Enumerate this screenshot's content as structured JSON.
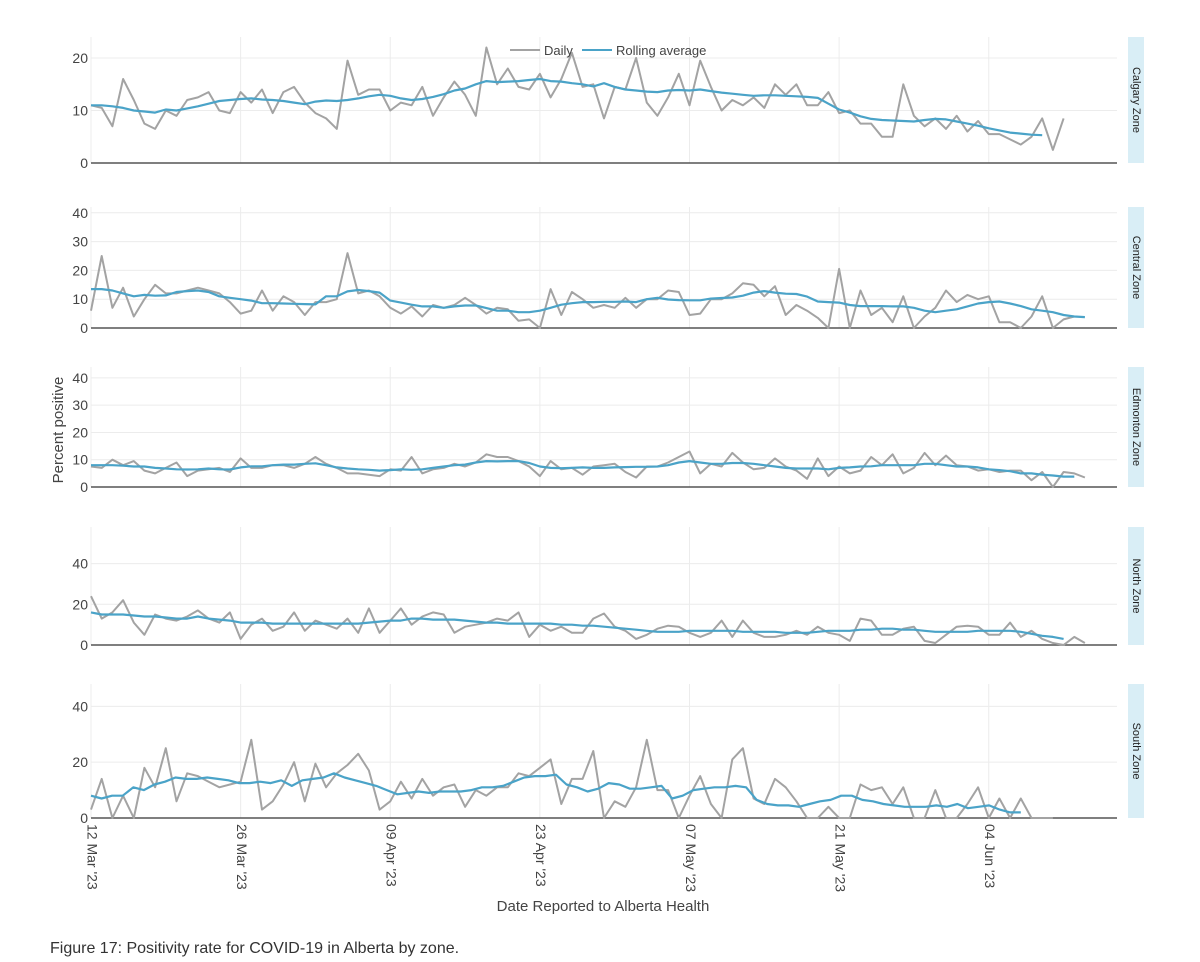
{
  "caption": "Figure 17: Positivity rate for COVID-19 in Alberta by zone.",
  "chart_data": {
    "type": "line",
    "xlabel": "Date Reported to Alberta Health",
    "ylabel": "Percent positive",
    "x_start": "2023-03-12",
    "x_end": "2023-06-16",
    "x_ticks": [
      {
        "day": 0,
        "label": "12 Mar '23"
      },
      {
        "day": 14,
        "label": "26 Mar '23"
      },
      {
        "day": 28,
        "label": "09 Apr '23"
      },
      {
        "day": 42,
        "label": "23 Apr '23"
      },
      {
        "day": 56,
        "label": "07 May '23"
      },
      {
        "day": 70,
        "label": "21 May '23"
      },
      {
        "day": 84,
        "label": "04 Jun '23"
      }
    ],
    "legend": [
      {
        "name": "Daily",
        "color": "#a3a3a3"
      },
      {
        "name": "Rolling average",
        "color": "#4aa3c8"
      }
    ],
    "panels": [
      {
        "zone": "Calgary Zone",
        "ylim": [
          0,
          24
        ],
        "yticks": [
          0,
          10,
          20
        ],
        "daily": [
          11,
          10.5,
          7,
          16,
          12,
          7.5,
          6.5,
          10,
          9,
          12,
          12.5,
          13.5,
          10,
          9.5,
          13.5,
          11.5,
          14,
          9.5,
          13.5,
          14.5,
          11.5,
          9.5,
          8.5,
          6.5,
          19.5,
          13,
          14,
          14,
          10,
          11.5,
          11,
          14.5,
          9,
          12.5,
          15.5,
          13,
          9,
          22,
          15,
          18,
          14.5,
          14,
          17,
          12.5,
          16,
          21,
          14.5,
          15,
          8.5,
          14.5,
          14,
          20,
          11.5,
          9,
          12.5,
          17,
          11,
          19.5,
          14.5,
          10,
          12,
          11,
          12.5,
          10.5,
          15,
          13,
          15,
          11,
          11,
          13.5,
          9.5,
          10,
          7.5,
          7.5,
          5,
          5,
          15,
          9,
          7,
          8.5,
          6.5,
          9,
          6,
          8,
          5.5,
          5.5,
          4.5,
          3.5,
          5,
          8.5,
          2.5,
          8.5
        ],
        "rolling": [
          11,
          11,
          10.8,
          10.5,
          10,
          9.8,
          9.6,
          10.2,
          10,
          10.4,
          10.8,
          11.3,
          11.8,
          12,
          12.2,
          12.3,
          12.1,
          12,
          11.8,
          11.5,
          11.2,
          11.7,
          11.9,
          11.8,
          12,
          12.3,
          12.7,
          13,
          12.8,
          12.3,
          12,
          12.2,
          12.6,
          13.1,
          13.8,
          14.2,
          15,
          15.6,
          15.4,
          15.5,
          15.6,
          15.8,
          16,
          15.6,
          15.5,
          15.2,
          15,
          14.6,
          15.2,
          14.5,
          14,
          13.8,
          13.6,
          13.5,
          13.8,
          13.9,
          13.8,
          14,
          13.7,
          13.4,
          13.2,
          13,
          12.8,
          12.9,
          12.9,
          12.8,
          12.7,
          12.6,
          12.4,
          11.3,
          10.2,
          9.6,
          8.9,
          8.4,
          8.2,
          8.1,
          8,
          7.9,
          8.2,
          8.4,
          8.3,
          7.9,
          7.5,
          7.1,
          6.6,
          6.2,
          5.8,
          5.6,
          5.4,
          5.3
        ],
        "rolling_start": 0
      },
      {
        "zone": "Central Zone",
        "ylim": [
          0,
          42
        ],
        "yticks": [
          0,
          10,
          20,
          30,
          40
        ],
        "daily": [
          6,
          25,
          7,
          14,
          4,
          10,
          15,
          12,
          12,
          13,
          14,
          13,
          12,
          9,
          5,
          6,
          13,
          6,
          11,
          9,
          4.5,
          9,
          9,
          10,
          26,
          12,
          13,
          11,
          7,
          5,
          7.5,
          4,
          8,
          7,
          8,
          10.5,
          8,
          5,
          7,
          6.5,
          2.5,
          3,
          0,
          13.5,
          4.5,
          12.5,
          10,
          7,
          8,
          7,
          10.5,
          7,
          10,
          10,
          13,
          12.5,
          4.5,
          5,
          10,
          10,
          12,
          15.5,
          15,
          11,
          14.5,
          4.5,
          8,
          6,
          3.5,
          0,
          20.5,
          0,
          13,
          4.5,
          7,
          2,
          11,
          0,
          4,
          7,
          13,
          9,
          11.5,
          10,
          11,
          2,
          2,
          0,
          4,
          11,
          0,
          3,
          4
        ],
        "rolling": [
          13.5,
          13.5,
          13,
          12,
          11,
          11.5,
          11.2,
          11.3,
          12.5,
          12.8,
          13,
          12.5,
          11,
          10.5,
          10,
          9.5,
          8.6,
          8.6,
          8.5,
          8.4,
          8.3,
          8.2,
          11,
          11,
          12.7,
          13.2,
          12.8,
          12.3,
          9.5,
          8.8,
          8.1,
          7.5,
          7.5,
          7,
          7.5,
          7.8,
          7.8,
          6.9,
          6,
          6,
          5.5,
          5.5,
          6,
          7,
          8.1,
          8.6,
          9,
          9,
          9.1,
          9.1,
          9.2,
          9,
          10,
          10.5,
          9.9,
          9.7,
          9.6,
          9.6,
          10.2,
          10.4,
          10.6,
          11.2,
          12.3,
          12.8,
          12.3,
          11.9,
          11.8,
          10.9,
          9.2,
          9,
          8.8,
          8,
          7.6,
          7.6,
          7.6,
          7.5,
          7.5,
          7,
          6,
          5.5,
          6,
          6.5,
          7.5,
          8.5,
          9,
          9.2,
          8.5,
          7.6,
          6.5,
          6,
          5.5,
          4.5,
          4,
          3.8
        ]
      },
      {
        "zone": "Edmonton Zone",
        "ylim": [
          0,
          44
        ],
        "yticks": [
          0,
          10,
          20,
          30,
          40
        ],
        "daily": [
          7.5,
          7,
          10,
          8,
          9.5,
          6,
          5,
          7,
          9,
          4,
          6,
          6.5,
          7,
          5.5,
          10.5,
          7,
          7,
          8,
          8,
          7,
          8.5,
          11,
          8.5,
          7,
          5,
          5,
          4.5,
          4,
          6.5,
          6,
          11,
          5,
          6.5,
          7,
          8.5,
          7.5,
          9,
          12,
          11,
          11,
          9.5,
          7.5,
          4,
          9.5,
          6.5,
          7,
          4.5,
          7.5,
          8,
          8.5,
          5.5,
          3.5,
          7.5,
          7.5,
          9,
          11,
          13,
          5,
          8.5,
          7.5,
          12.5,
          9,
          6.5,
          7,
          10.5,
          7.5,
          6,
          3,
          10.5,
          4,
          7.5,
          5,
          6,
          11,
          8,
          12,
          5,
          7,
          12.5,
          8,
          11.5,
          8,
          7.5,
          6,
          6.5,
          5.5,
          6,
          6,
          2.5,
          5.5,
          0,
          5.5,
          5,
          3.5
        ],
        "rolling": [
          8,
          8,
          8,
          7.8,
          7.5,
          7.5,
          7,
          6.8,
          6.5,
          6.4,
          6.5,
          6.8,
          6.5,
          6.4,
          7.2,
          7.6,
          7.6,
          8,
          8.2,
          8.2,
          8.5,
          8.7,
          8,
          7.2,
          6.8,
          6.5,
          6.3,
          6,
          6.2,
          6.5,
          6.3,
          6.5,
          7,
          7.5,
          8,
          8.2,
          9,
          9.5,
          9.4,
          9.5,
          9.5,
          8.8,
          7.5,
          7,
          6.9,
          7,
          7.2,
          7,
          7,
          7.2,
          7.3,
          7.4,
          7.4,
          7.5,
          8,
          9,
          9.5,
          9,
          8.5,
          8.5,
          8.8,
          8.8,
          8.5,
          8,
          7.5,
          7,
          6.8,
          6.8,
          6.8,
          6.5,
          7,
          7.2,
          7.5,
          7.6,
          8,
          8,
          8,
          8,
          8.5,
          8.5,
          8,
          7.5,
          7.5,
          7.2,
          6.5,
          6.2,
          5.8,
          5,
          5,
          4.5,
          4.2,
          3.8,
          3.8
        ]
      },
      {
        "zone": "North Zone",
        "ylim": [
          0,
          58
        ],
        "yticks": [
          0,
          20,
          40
        ],
        "daily": [
          24,
          13,
          16,
          22,
          11,
          5,
          15,
          13,
          12,
          14,
          17,
          13,
          11,
          16,
          3,
          10,
          13,
          7,
          9,
          16,
          7,
          12,
          10,
          8,
          13,
          6,
          18,
          6,
          12,
          18,
          10,
          14,
          16,
          15,
          6,
          9,
          10,
          11,
          13,
          12,
          16,
          4,
          10,
          7,
          9,
          6,
          6,
          13,
          15.5,
          9,
          7,
          3,
          5,
          8,
          9.5,
          9,
          6,
          4,
          6,
          12,
          4,
          12,
          6,
          4,
          4,
          5,
          7,
          5,
          9,
          6,
          5,
          2,
          13,
          12,
          5,
          5,
          8,
          9,
          2,
          1,
          5,
          9,
          9.5,
          9,
          5,
          5,
          11,
          4,
          7,
          3,
          1,
          0,
          4,
          1
        ],
        "rolling": [
          16,
          15,
          15,
          15,
          14.5,
          14,
          14,
          13.5,
          13,
          13,
          14,
          13,
          12.5,
          12,
          11,
          11,
          11,
          10.5,
          10.5,
          10.5,
          10.5,
          10.5,
          10.5,
          10.5,
          10.5,
          10.5,
          11,
          11.5,
          12,
          12,
          13,
          13,
          12.5,
          12.5,
          12.5,
          12,
          11.5,
          11,
          11,
          10.5,
          10.5,
          10.5,
          10.5,
          10.5,
          10,
          10,
          9.5,
          9.5,
          9,
          8.5,
          8,
          7.5,
          7,
          6.5,
          6.5,
          6.5,
          7,
          7,
          7,
          7,
          7,
          6.5,
          6.5,
          6.5,
          6.5,
          6,
          6,
          6,
          6.5,
          7,
          7,
          7,
          7.5,
          7.5,
          8,
          8,
          7.5,
          7.5,
          7,
          6.5,
          6.5,
          6.5,
          6.5,
          7,
          7,
          7,
          7,
          6.5,
          5.5,
          4.5,
          4,
          3
        ]
      },
      {
        "zone": "South Zone",
        "ylim": [
          0,
          48
        ],
        "yticks": [
          0,
          20,
          40
        ],
        "daily": [
          3,
          14,
          0,
          8,
          0,
          18,
          11,
          25,
          6,
          16,
          15,
          13,
          11,
          12,
          13,
          28,
          3,
          6,
          12,
          20,
          6,
          19.5,
          11,
          16,
          19,
          23,
          17,
          3,
          6,
          13,
          7,
          14,
          8,
          11,
          12,
          4,
          10,
          8,
          11,
          11,
          16,
          15,
          18,
          21,
          5,
          14,
          14,
          24,
          0,
          6,
          4,
          11,
          28,
          10,
          10,
          0,
          8,
          15,
          5,
          0,
          21,
          25,
          7,
          5,
          14,
          11,
          6,
          0,
          0,
          4,
          0,
          0,
          12,
          10,
          11,
          5,
          11,
          0,
          0,
          10,
          0,
          0,
          5,
          11,
          0,
          7,
          0,
          7,
          0,
          0,
          0
        ],
        "rolling": [
          8,
          7,
          8,
          8,
          11,
          10,
          12,
          13,
          14.5,
          14,
          14,
          14.5,
          14,
          13.5,
          12.5,
          12.5,
          13,
          12.5,
          13.5,
          11.5,
          13.5,
          14,
          14.5,
          16,
          14.5,
          13.5,
          12.5,
          11.5,
          10,
          8.5,
          9,
          9.5,
          9,
          9.5,
          9.5,
          9.5,
          10,
          11,
          11,
          11.5,
          13,
          14.5,
          15,
          15,
          15.5,
          12,
          11,
          9.5,
          10.5,
          12.5,
          12,
          10.5,
          10.5,
          11,
          11.5,
          7,
          8,
          10,
          10.5,
          11,
          11,
          11.5,
          11,
          6.5,
          5,
          4.5,
          4.5,
          4,
          5,
          6,
          6.5,
          8,
          8,
          6.5,
          6,
          5,
          4.5,
          4,
          4,
          4,
          4.5,
          4,
          5,
          3.5,
          4,
          4.5,
          3,
          2,
          2
        ],
        "rolling_end_day": 87
      }
    ]
  }
}
